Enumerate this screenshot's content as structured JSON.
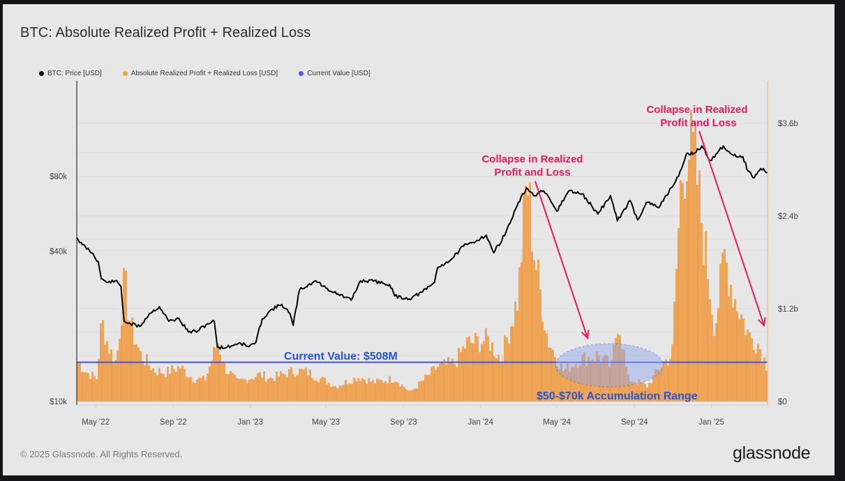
{
  "title": "BTC: Absolute Realized Profit + Realized Loss",
  "footer": "© 2025 Glassnode. All Rights Reserved.",
  "logo": "glassnode",
  "legend": [
    {
      "label": "BTC: Price [USD]",
      "color": "#000000"
    },
    {
      "label": "Absolute Realized Profit + Realized Loss [USD]",
      "color": "#f0a04b"
    },
    {
      "label": "Current Value [USD]",
      "color": "#4a5ae8"
    }
  ],
  "chart_data": {
    "type": "bar+line",
    "title": "BTC: Absolute Realized Profit + Realized Loss",
    "x_range": [
      "2022-04-01",
      "2025-03-31"
    ],
    "x_ticks": [
      "May '22",
      "Sep '22",
      "Jan '23",
      "May '23",
      "Sep '23",
      "Jan '24",
      "May '24",
      "Sep '24",
      "Jan '25"
    ],
    "y_left": {
      "label": "BTC: Price [USD]",
      "scale": "log",
      "ticks": [
        "$10k",
        "$40k",
        "$80k"
      ],
      "tick_values": [
        10000,
        40000,
        80000
      ]
    },
    "y_right": {
      "label": "Absolute Realized Profit + Realized Loss [USD]",
      "ticks": [
        "$0",
        "$1.2b",
        "$2.4b",
        "$3.6b"
      ],
      "tick_values": [
        0,
        1.2,
        2.4,
        3.6
      ],
      "unit": "billion USD",
      "range": [
        0,
        4.2
      ]
    },
    "current_value": 0.508,
    "series": [
      {
        "name": "BTC: Price [USD]",
        "type": "line",
        "color": "#000000",
        "points": [
          [
            "2022-04-01",
            45500
          ],
          [
            "2022-04-10",
            42500
          ],
          [
            "2022-04-25",
            39500
          ],
          [
            "2022-05-05",
            36500
          ],
          [
            "2022-05-10",
            31000
          ],
          [
            "2022-05-20",
            30000
          ],
          [
            "2022-06-01",
            30500
          ],
          [
            "2022-06-10",
            29000
          ],
          [
            "2022-06-15",
            21000
          ],
          [
            "2022-06-25",
            20500
          ],
          [
            "2022-07-10",
            20000
          ],
          [
            "2022-07-25",
            22500
          ],
          [
            "2022-08-10",
            24000
          ],
          [
            "2022-08-25",
            21000
          ],
          [
            "2022-09-10",
            21500
          ],
          [
            "2022-09-25",
            19000
          ],
          [
            "2022-10-10",
            19200
          ],
          [
            "2022-10-25",
            20500
          ],
          [
            "2022-11-05",
            21000
          ],
          [
            "2022-11-10",
            16500
          ],
          [
            "2022-11-25",
            16500
          ],
          [
            "2022-12-15",
            17200
          ],
          [
            "2022-12-30",
            16600
          ],
          [
            "2023-01-10",
            17300
          ],
          [
            "2023-01-20",
            21500
          ],
          [
            "2023-02-05",
            23500
          ],
          [
            "2023-02-20",
            24500
          ],
          [
            "2023-03-05",
            22500
          ],
          [
            "2023-03-10",
            20200
          ],
          [
            "2023-03-20",
            28000
          ],
          [
            "2023-04-10",
            30000
          ],
          [
            "2023-04-15",
            30500
          ],
          [
            "2023-05-01",
            28500
          ],
          [
            "2023-05-20",
            27000
          ],
          [
            "2023-06-10",
            25500
          ],
          [
            "2023-06-25",
            30500
          ],
          [
            "2023-07-15",
            30400
          ],
          [
            "2023-08-10",
            29500
          ],
          [
            "2023-08-18",
            26500
          ],
          [
            "2023-09-10",
            25800
          ],
          [
            "2023-10-01",
            27500
          ],
          [
            "2023-10-20",
            30000
          ],
          [
            "2023-10-25",
            34500
          ],
          [
            "2023-11-15",
            37000
          ],
          [
            "2023-12-05",
            42000
          ],
          [
            "2023-12-20",
            43500
          ],
          [
            "2024-01-10",
            46500
          ],
          [
            "2024-01-22",
            39500
          ],
          [
            "2024-02-10",
            47500
          ],
          [
            "2024-02-28",
            61000
          ],
          [
            "2024-03-14",
            72000
          ],
          [
            "2024-03-25",
            67000
          ],
          [
            "2024-04-10",
            70000
          ],
          [
            "2024-05-01",
            58000
          ],
          [
            "2024-05-20",
            70000
          ],
          [
            "2024-06-10",
            68000
          ],
          [
            "2024-06-25",
            61000
          ],
          [
            "2024-07-05",
            56500
          ],
          [
            "2024-07-25",
            67000
          ],
          [
            "2024-08-05",
            53000
          ],
          [
            "2024-08-25",
            64000
          ],
          [
            "2024-09-06",
            53500
          ],
          [
            "2024-09-20",
            63000
          ],
          [
            "2024-10-10",
            60000
          ],
          [
            "2024-10-29",
            72000
          ],
          [
            "2024-11-10",
            80000
          ],
          [
            "2024-11-22",
            98000
          ],
          [
            "2024-12-05",
            99000
          ],
          [
            "2024-12-17",
            106000
          ],
          [
            "2024-12-30",
            92500
          ],
          [
            "2025-01-20",
            106000
          ],
          [
            "2025-02-05",
            97000
          ],
          [
            "2025-02-20",
            96000
          ],
          [
            "2025-02-28",
            84000
          ],
          [
            "2025-03-10",
            79000
          ],
          [
            "2025-03-20",
            86000
          ],
          [
            "2025-03-31",
            83000
          ]
        ]
      },
      {
        "name": "Absolute Realized Profit + Realized Loss [USD]",
        "type": "bar",
        "color": "#f0a04b",
        "unit": "billion USD",
        "points": [
          [
            "2022-04-01",
            0.52
          ],
          [
            "2022-04-15",
            0.38
          ],
          [
            "2022-05-01",
            0.3
          ],
          [
            "2022-05-09",
            1.05
          ],
          [
            "2022-05-20",
            0.7
          ],
          [
            "2022-06-01",
            0.5
          ],
          [
            "2022-06-14",
            1.55
          ],
          [
            "2022-06-25",
            0.95
          ],
          [
            "2022-07-10",
            0.6
          ],
          [
            "2022-08-01",
            0.4
          ],
          [
            "2022-08-20",
            0.38
          ],
          [
            "2022-09-10",
            0.45
          ],
          [
            "2022-10-01",
            0.3
          ],
          [
            "2022-10-20",
            0.28
          ],
          [
            "2022-11-09",
            0.78
          ],
          [
            "2022-11-20",
            0.45
          ],
          [
            "2022-12-10",
            0.25
          ],
          [
            "2023-01-14",
            0.35
          ],
          [
            "2023-02-01",
            0.3
          ],
          [
            "2023-03-12",
            0.4
          ],
          [
            "2023-04-01",
            0.38
          ],
          [
            "2023-04-20",
            0.3
          ],
          [
            "2023-05-15",
            0.2
          ],
          [
            "2023-06-21",
            0.32
          ],
          [
            "2023-07-15",
            0.25
          ],
          [
            "2023-08-17",
            0.3
          ],
          [
            "2023-09-10",
            0.12
          ],
          [
            "2023-10-24",
            0.45
          ],
          [
            "2023-11-20",
            0.5
          ],
          [
            "2023-12-08",
            0.75
          ],
          [
            "2024-01-11",
            0.8
          ],
          [
            "2024-02-01",
            0.55
          ],
          [
            "2024-02-28",
            1.35
          ],
          [
            "2024-03-13",
            2.9
          ],
          [
            "2024-03-25",
            1.9
          ],
          [
            "2024-04-15",
            0.8
          ],
          [
            "2024-05-10",
            0.4
          ],
          [
            "2024-06-05",
            0.55
          ],
          [
            "2024-07-05",
            0.6
          ],
          [
            "2024-07-25",
            0.45
          ],
          [
            "2024-08-05",
            1.1
          ],
          [
            "2024-08-20",
            0.3
          ],
          [
            "2024-09-20",
            0.2
          ],
          [
            "2024-10-15",
            0.5
          ],
          [
            "2024-10-29",
            0.6
          ],
          [
            "2024-11-12",
            2.8
          ],
          [
            "2024-11-22",
            3.35
          ],
          [
            "2024-12-05",
            3.1
          ],
          [
            "2024-12-17",
            2.2
          ],
          [
            "2025-01-05",
            0.95
          ],
          [
            "2025-01-20",
            1.9
          ],
          [
            "2025-02-03",
            1.4
          ],
          [
            "2025-02-28",
            0.85
          ],
          [
            "2025-03-15",
            0.75
          ],
          [
            "2025-03-31",
            0.4
          ]
        ]
      },
      {
        "name": "Current Value [USD]",
        "type": "hline",
        "color": "#4a5ae8",
        "value": 0.508,
        "unit": "billion USD"
      }
    ],
    "annotations": [
      {
        "text_lines": [
          "Collapse in Realized",
          "Profit and Loss"
        ],
        "color": "#e8195a",
        "arrow_from": "2024-04-05",
        "arrow_to": "2024-06-12"
      },
      {
        "text_lines": [
          "Collapse in Realized",
          "Profit and Loss"
        ],
        "color": "#e8195a",
        "arrow_from": "2024-12-15",
        "arrow_to": "2025-03-25"
      },
      {
        "text": "Current Value: $508M",
        "color": "#2156e0"
      },
      {
        "text": "$50-$70k Accumulation Range",
        "color": "#2156e0",
        "highlight": "ellipse",
        "range": [
          "2024-05-01",
          "2024-11-01"
        ]
      }
    ]
  }
}
